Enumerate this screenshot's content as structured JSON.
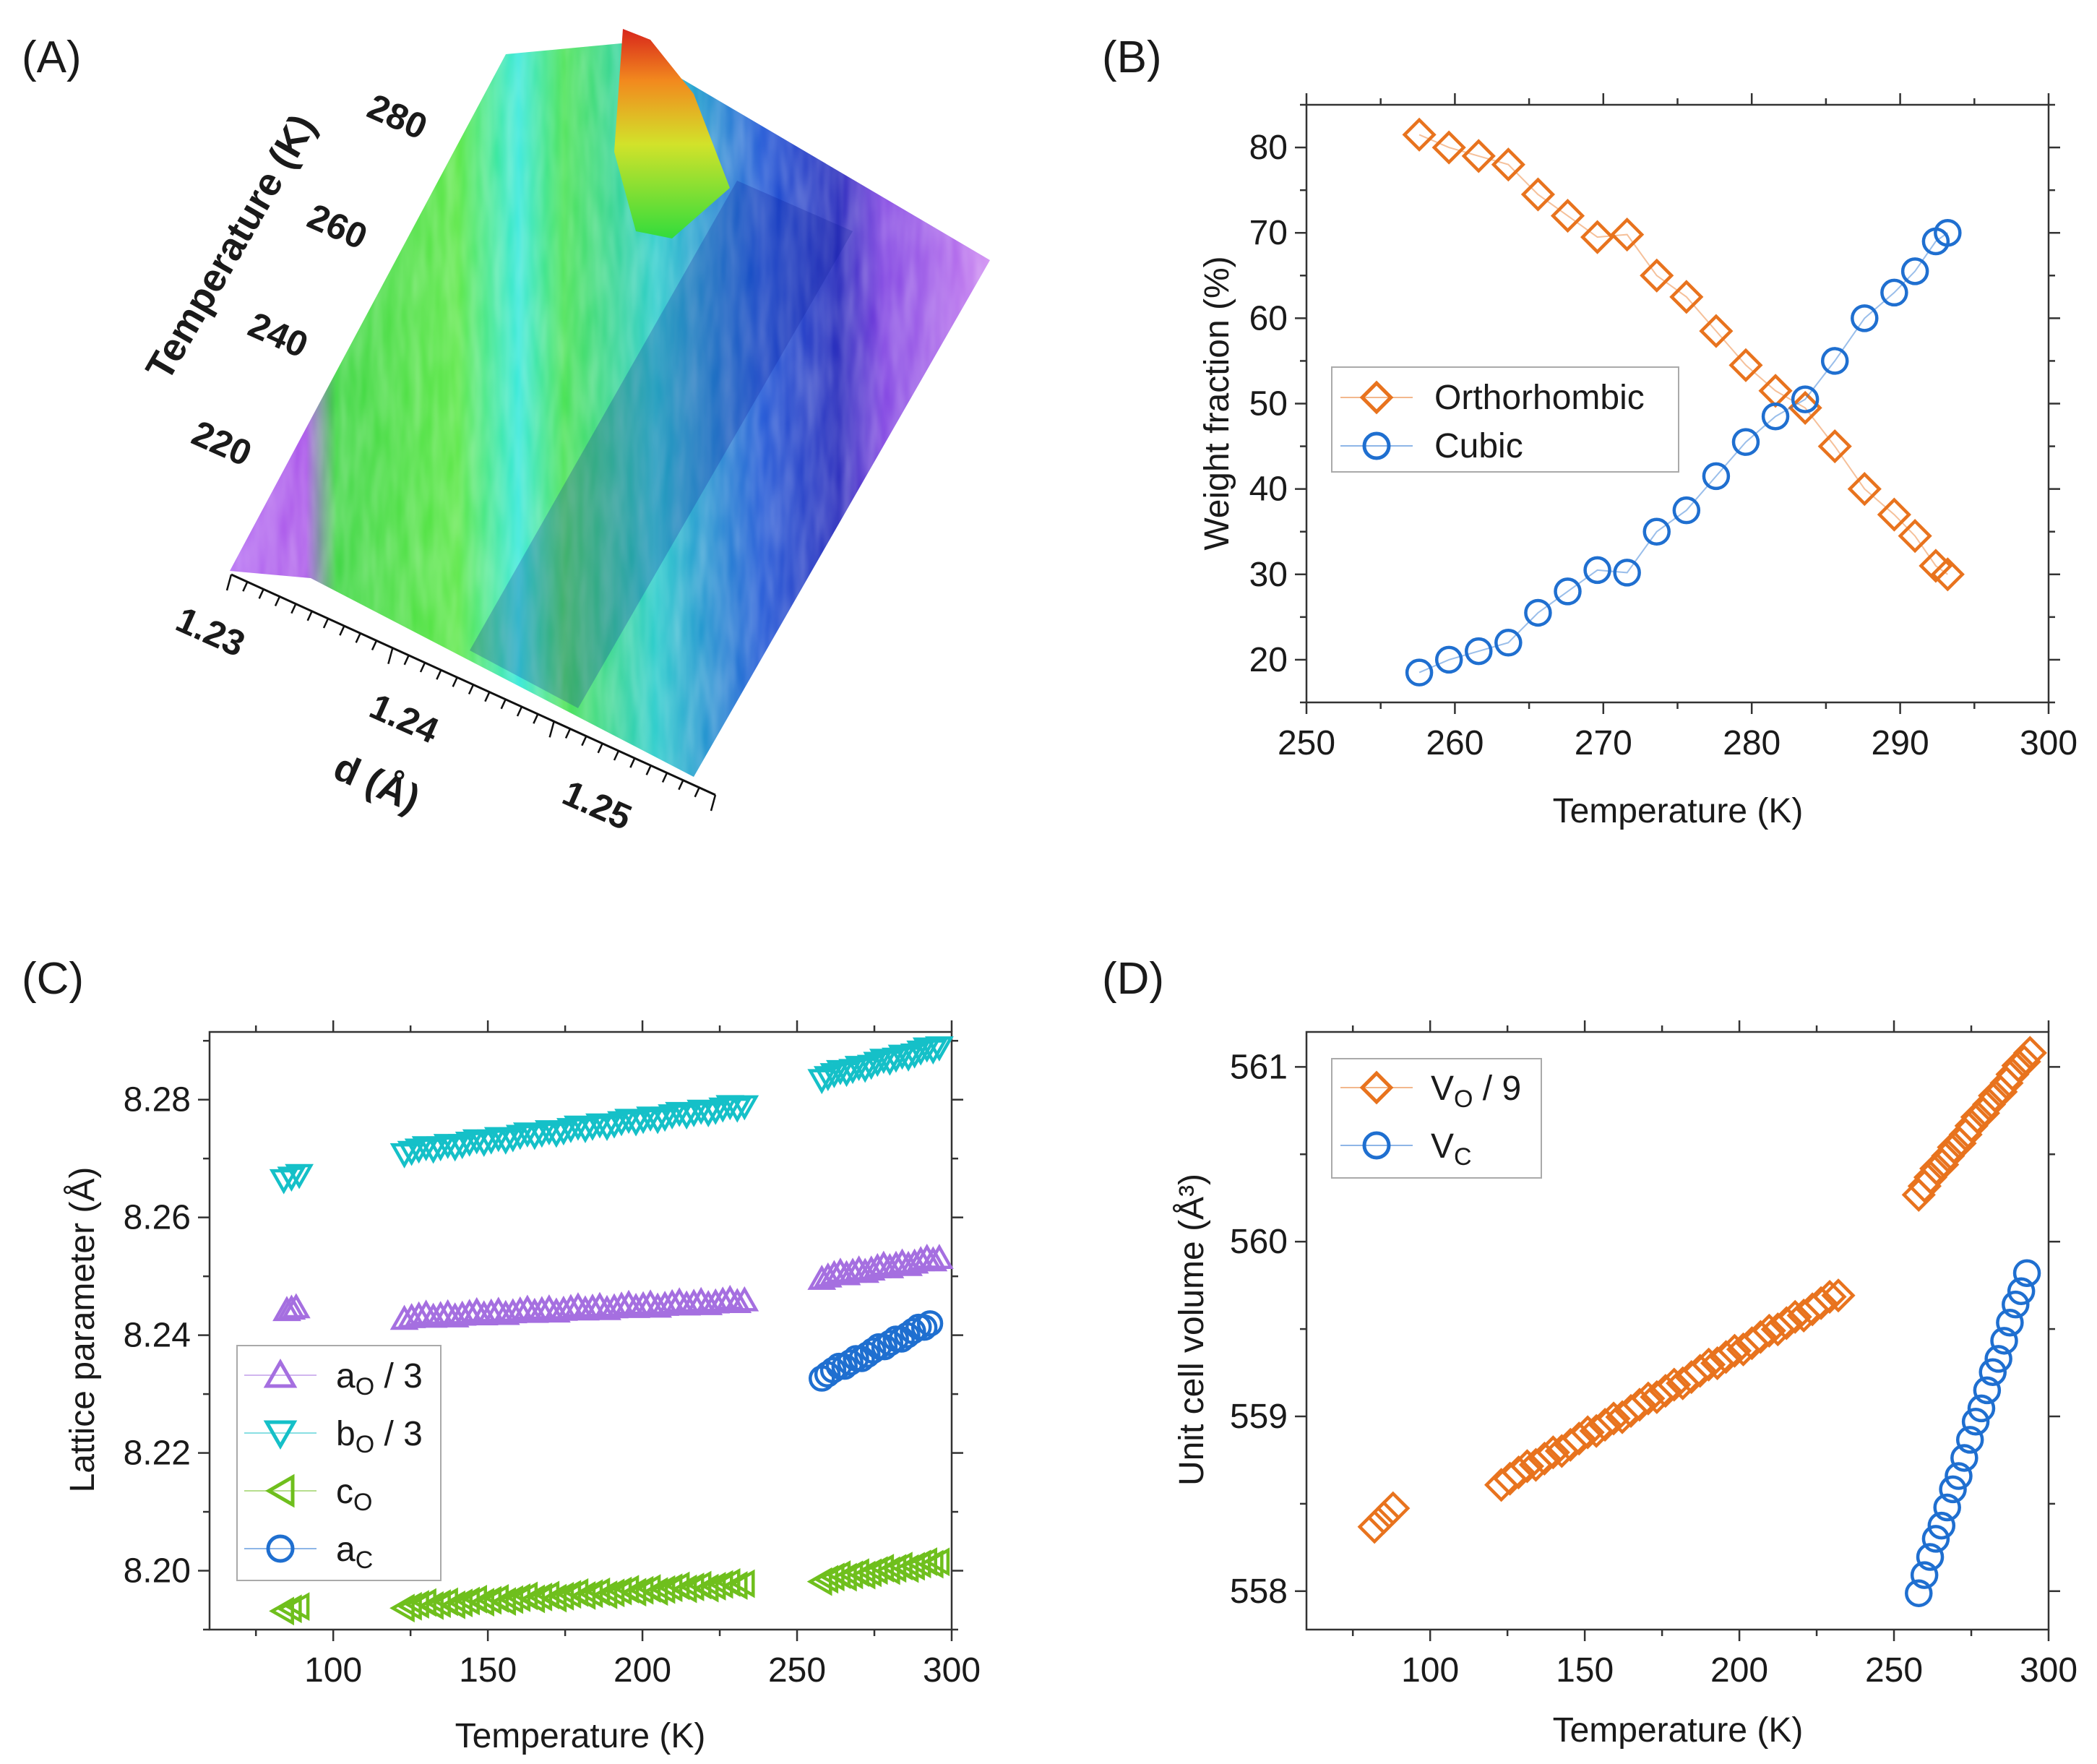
{
  "panels": {
    "a": {
      "label": "(A)"
    },
    "b": {
      "label": "(B)"
    },
    "c": {
      "label": "(C)"
    },
    "d": {
      "label": "(D)"
    }
  },
  "colors": {
    "orange": "#e8731e",
    "blue": "#1f6fd0",
    "purple": "#a56fe0",
    "cyan": "#15c0c8",
    "green": "#6fbf1d"
  },
  "chart_data": [
    {
      "id": "A",
      "type": "surface",
      "title": "",
      "xlabel": "d (Å)",
      "ylabel": "Temperature (K)",
      "x_ticks": [
        "1.23",
        "1.24",
        "1.25"
      ],
      "y_ticks": [
        "220",
        "240",
        "260",
        "280"
      ]
    },
    {
      "id": "B",
      "type": "scatter",
      "title": "",
      "xlabel": "Temperature (K)",
      "ylabel": "Weight fraction (%)",
      "xlim": [
        250,
        300
      ],
      "ylim": [
        15,
        85
      ],
      "x_ticks": [
        "250",
        "260",
        "270",
        "280",
        "290",
        "300"
      ],
      "y_ticks": [
        "20",
        "30",
        "40",
        "50",
        "60",
        "70",
        "80"
      ],
      "legend": "center-left",
      "series": [
        {
          "name": "Orthorhombic",
          "marker": "diamond",
          "color": "#e8731e",
          "x": [
            257.6,
            259.6,
            261.6,
            263.6,
            265.6,
            267.6,
            269.6,
            271.6,
            273.6,
            275.6,
            277.6,
            279.6,
            281.6,
            283.6,
            285.6,
            287.6,
            289.6,
            291.0,
            292.4,
            293.2
          ],
          "y": [
            81.5,
            80.0,
            79.0,
            78.0,
            74.5,
            72.0,
            69.5,
            69.8,
            65.0,
            62.5,
            58.5,
            54.5,
            51.5,
            49.5,
            45.0,
            40.0,
            37.0,
            34.5,
            31.0,
            30.0
          ]
        },
        {
          "name": "Cubic",
          "marker": "circle",
          "color": "#1f6fd0",
          "x": [
            257.6,
            259.6,
            261.6,
            263.6,
            265.6,
            267.6,
            269.6,
            271.6,
            273.6,
            275.6,
            277.6,
            279.6,
            281.6,
            283.6,
            285.6,
            287.6,
            289.6,
            291.0,
            292.4,
            293.2
          ],
          "y": [
            18.5,
            20.0,
            21.0,
            22.0,
            25.5,
            28.0,
            30.5,
            30.2,
            35.0,
            37.5,
            41.5,
            45.5,
            48.5,
            50.5,
            55.0,
            60.0,
            63.0,
            65.5,
            69.0,
            70.0
          ]
        }
      ]
    },
    {
      "id": "C",
      "type": "scatter",
      "title": "",
      "xlabel": "Temperature (K)",
      "ylabel": "Lattice parameter (Å)",
      "xlim": [
        60,
        300
      ],
      "ylim": [
        8.19,
        8.2915
      ],
      "x_ticks": [
        "100",
        "150",
        "200",
        "250",
        "300"
      ],
      "y_ticks": [
        "8.20",
        "8.22",
        "8.24",
        "8.26",
        "8.28"
      ],
      "legend": "lower-left",
      "series": [
        {
          "name": "aO / 3",
          "label_main": "a",
          "label_sub": "O",
          "label_tail": " / 3",
          "marker": "triangle-up",
          "color": "#a56fe0",
          "segments": [
            {
              "x0": 85,
              "x1": 88,
              "y0": 8.2445,
              "y1": 8.2445,
              "n": 3
            },
            {
              "x0": 123,
              "x1": 233,
              "y0": 8.243,
              "y1": 8.2458,
              "n": 48
            },
            {
              "x0": 258,
              "x1": 296,
              "y0": 8.2498,
              "y1": 8.253,
              "n": 20
            }
          ]
        },
        {
          "name": "bO / 3",
          "label_main": "b",
          "label_sub": "O",
          "label_tail": " / 3",
          "marker": "triangle-down",
          "color": "#15c0c8",
          "segments": [
            {
              "x0": 84,
              "x1": 89,
              "y0": 8.2668,
              "y1": 8.2672,
              "n": 3
            },
            {
              "x0": 123,
              "x1": 233,
              "y0": 8.2712,
              "y1": 8.279,
              "n": 48
            },
            {
              "x0": 258,
              "x1": 296,
              "y0": 8.2838,
              "y1": 8.289,
              "n": 20
            }
          ]
        },
        {
          "name": "cO",
          "label_main": "c",
          "label_sub": "O",
          "label_tail": "",
          "marker": "triangle-left",
          "color": "#6fbf1d",
          "segments": [
            {
              "x0": 84,
              "x1": 89,
              "y0": 8.1935,
              "y1": 8.1938,
              "n": 3
            },
            {
              "x0": 123,
              "x1": 233,
              "y0": 8.194,
              "y1": 8.1978,
              "n": 48
            },
            {
              "x0": 258,
              "x1": 296,
              "y0": 8.1985,
              "y1": 8.2015,
              "n": 20
            }
          ]
        },
        {
          "name": "aC",
          "label_main": "a",
          "label_sub": "C",
          "label_tail": "",
          "marker": "circle",
          "color": "#1f6fd0",
          "segments": [
            {
              "x0": 258,
              "x1": 293,
              "y0": 8.233,
              "y1": 8.242,
              "n": 20
            }
          ]
        }
      ]
    },
    {
      "id": "D",
      "type": "scatter",
      "title": "",
      "xlabel": "Temperature (K)",
      "ylabel": "Unit cell volume (Å³)",
      "xlim": [
        60,
        300
      ],
      "ylim": [
        557.78,
        561.2
      ],
      "x_ticks": [
        "100",
        "150",
        "200",
        "250",
        "300"
      ],
      "y_ticks": [
        "558",
        "559",
        "560",
        "561"
      ],
      "legend": "upper-left",
      "series": [
        {
          "name": "VO / 9",
          "label_main": "V",
          "label_sub": "O",
          "label_tail": " / 9",
          "marker": "diamond",
          "color": "#e8731e",
          "segments": [
            {
              "x0": 82,
              "x1": 88,
              "y0": 558.38,
              "y1": 558.47,
              "n": 3
            },
            {
              "x0": 123,
              "x1": 232,
              "y0": 558.62,
              "y1": 559.7,
              "n": 40
            },
            {
              "x0": 258,
              "x1": 294,
              "y0": 560.28,
              "y1": 561.08,
              "n": 20
            }
          ]
        },
        {
          "name": "VC",
          "label_main": "V",
          "label_sub": "C",
          "label_tail": "",
          "marker": "circle",
          "color": "#1f6fd0",
          "segments": [
            {
              "x0": 258,
              "x1": 293,
              "y0": 558.0,
              "y1": 559.82,
              "n": 20
            }
          ]
        }
      ]
    }
  ]
}
